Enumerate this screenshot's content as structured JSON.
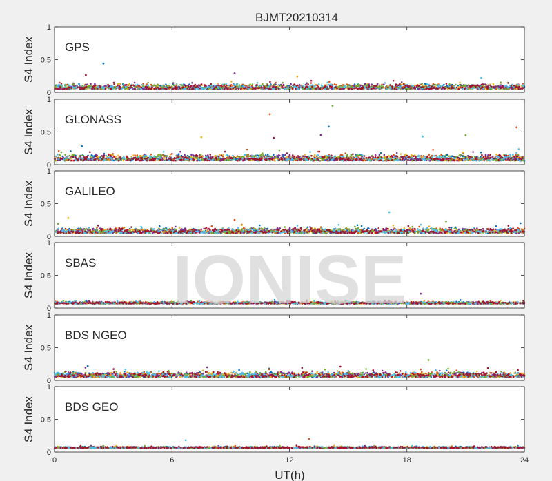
{
  "chart_data": {
    "type": "scatter",
    "title": "BJMT20210314",
    "xlabel": "UT(h)",
    "xlim": [
      0,
      24
    ],
    "xticks": [
      0,
      6,
      12,
      18,
      24
    ],
    "ylabel": "S4 Index",
    "ylim": [
      0,
      1
    ],
    "yticks": [
      0,
      0.5,
      1
    ],
    "grid": false,
    "watermark": "IONISE",
    "series_colors": [
      "#0072bd",
      "#d95319",
      "#edb120",
      "#7e2f8e",
      "#77ac30",
      "#4dbeee",
      "#a2142f"
    ],
    "panels": [
      {
        "label": "GPS",
        "baseline": 0.08,
        "spread": 0.05,
        "spikes": [
          {
            "x": 2.5,
            "y": 0.44
          },
          {
            "x": 9.2,
            "y": 0.29
          },
          {
            "x": 1.6,
            "y": 0.26
          },
          {
            "x": 12.4,
            "y": 0.24
          },
          {
            "x": 21.8,
            "y": 0.22
          }
        ]
      },
      {
        "label": "GLONASS",
        "baseline": 0.1,
        "spread": 0.06,
        "spikes": [
          {
            "x": 11.0,
            "y": 0.77
          },
          {
            "x": 14.2,
            "y": 0.9
          },
          {
            "x": 14.0,
            "y": 0.58
          },
          {
            "x": 13.6,
            "y": 0.45
          },
          {
            "x": 11.2,
            "y": 0.41
          },
          {
            "x": 7.5,
            "y": 0.42
          },
          {
            "x": 18.8,
            "y": 0.43
          },
          {
            "x": 23.6,
            "y": 0.57
          },
          {
            "x": 21.0,
            "y": 0.45
          },
          {
            "x": 1.4,
            "y": 0.28
          }
        ]
      },
      {
        "label": "GALILEO",
        "baseline": 0.08,
        "spread": 0.05,
        "spikes": [
          {
            "x": 0.7,
            "y": 0.28
          },
          {
            "x": 17.1,
            "y": 0.37
          },
          {
            "x": 9.2,
            "y": 0.25
          },
          {
            "x": 20.0,
            "y": 0.23
          },
          {
            "x": 23.8,
            "y": 0.2
          }
        ]
      },
      {
        "label": "SBAS",
        "baseline": 0.11,
        "spread": 0.02,
        "spikes": [
          {
            "x": 18.7,
            "y": 0.22
          }
        ]
      },
      {
        "label": "BDS NGEO",
        "baseline": 0.08,
        "spread": 0.05,
        "spikes": [
          {
            "x": 19.1,
            "y": 0.31
          },
          {
            "x": 1.7,
            "y": 0.22
          },
          {
            "x": 7.8,
            "y": 0.2
          },
          {
            "x": 14.6,
            "y": 0.21
          }
        ]
      },
      {
        "label": "BDS GEO",
        "baseline": 0.1,
        "spread": 0.015,
        "spikes": [
          {
            "x": 6.7,
            "y": 0.18
          },
          {
            "x": 13.0,
            "y": 0.2
          }
        ]
      }
    ]
  }
}
